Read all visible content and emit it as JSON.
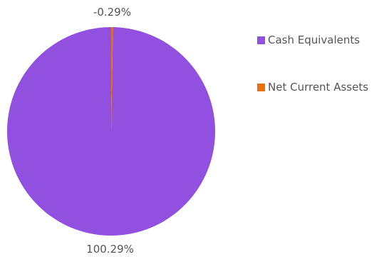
{
  "chart_data": {
    "type": "pie",
    "categories": [
      "Cash Equivalents",
      "Net Current Assets"
    ],
    "values": [
      100.29,
      -0.29
    ],
    "labels": [
      "100.29%",
      "-0.29%"
    ],
    "colors": [
      "#9150E0",
      "#E8710A"
    ],
    "legend_position": "right"
  },
  "legend": {
    "items": [
      {
        "label": "Cash Equivalents",
        "color": "#9150E0"
      },
      {
        "label": "Net Current Assets",
        "color": "#E8710A"
      }
    ]
  }
}
